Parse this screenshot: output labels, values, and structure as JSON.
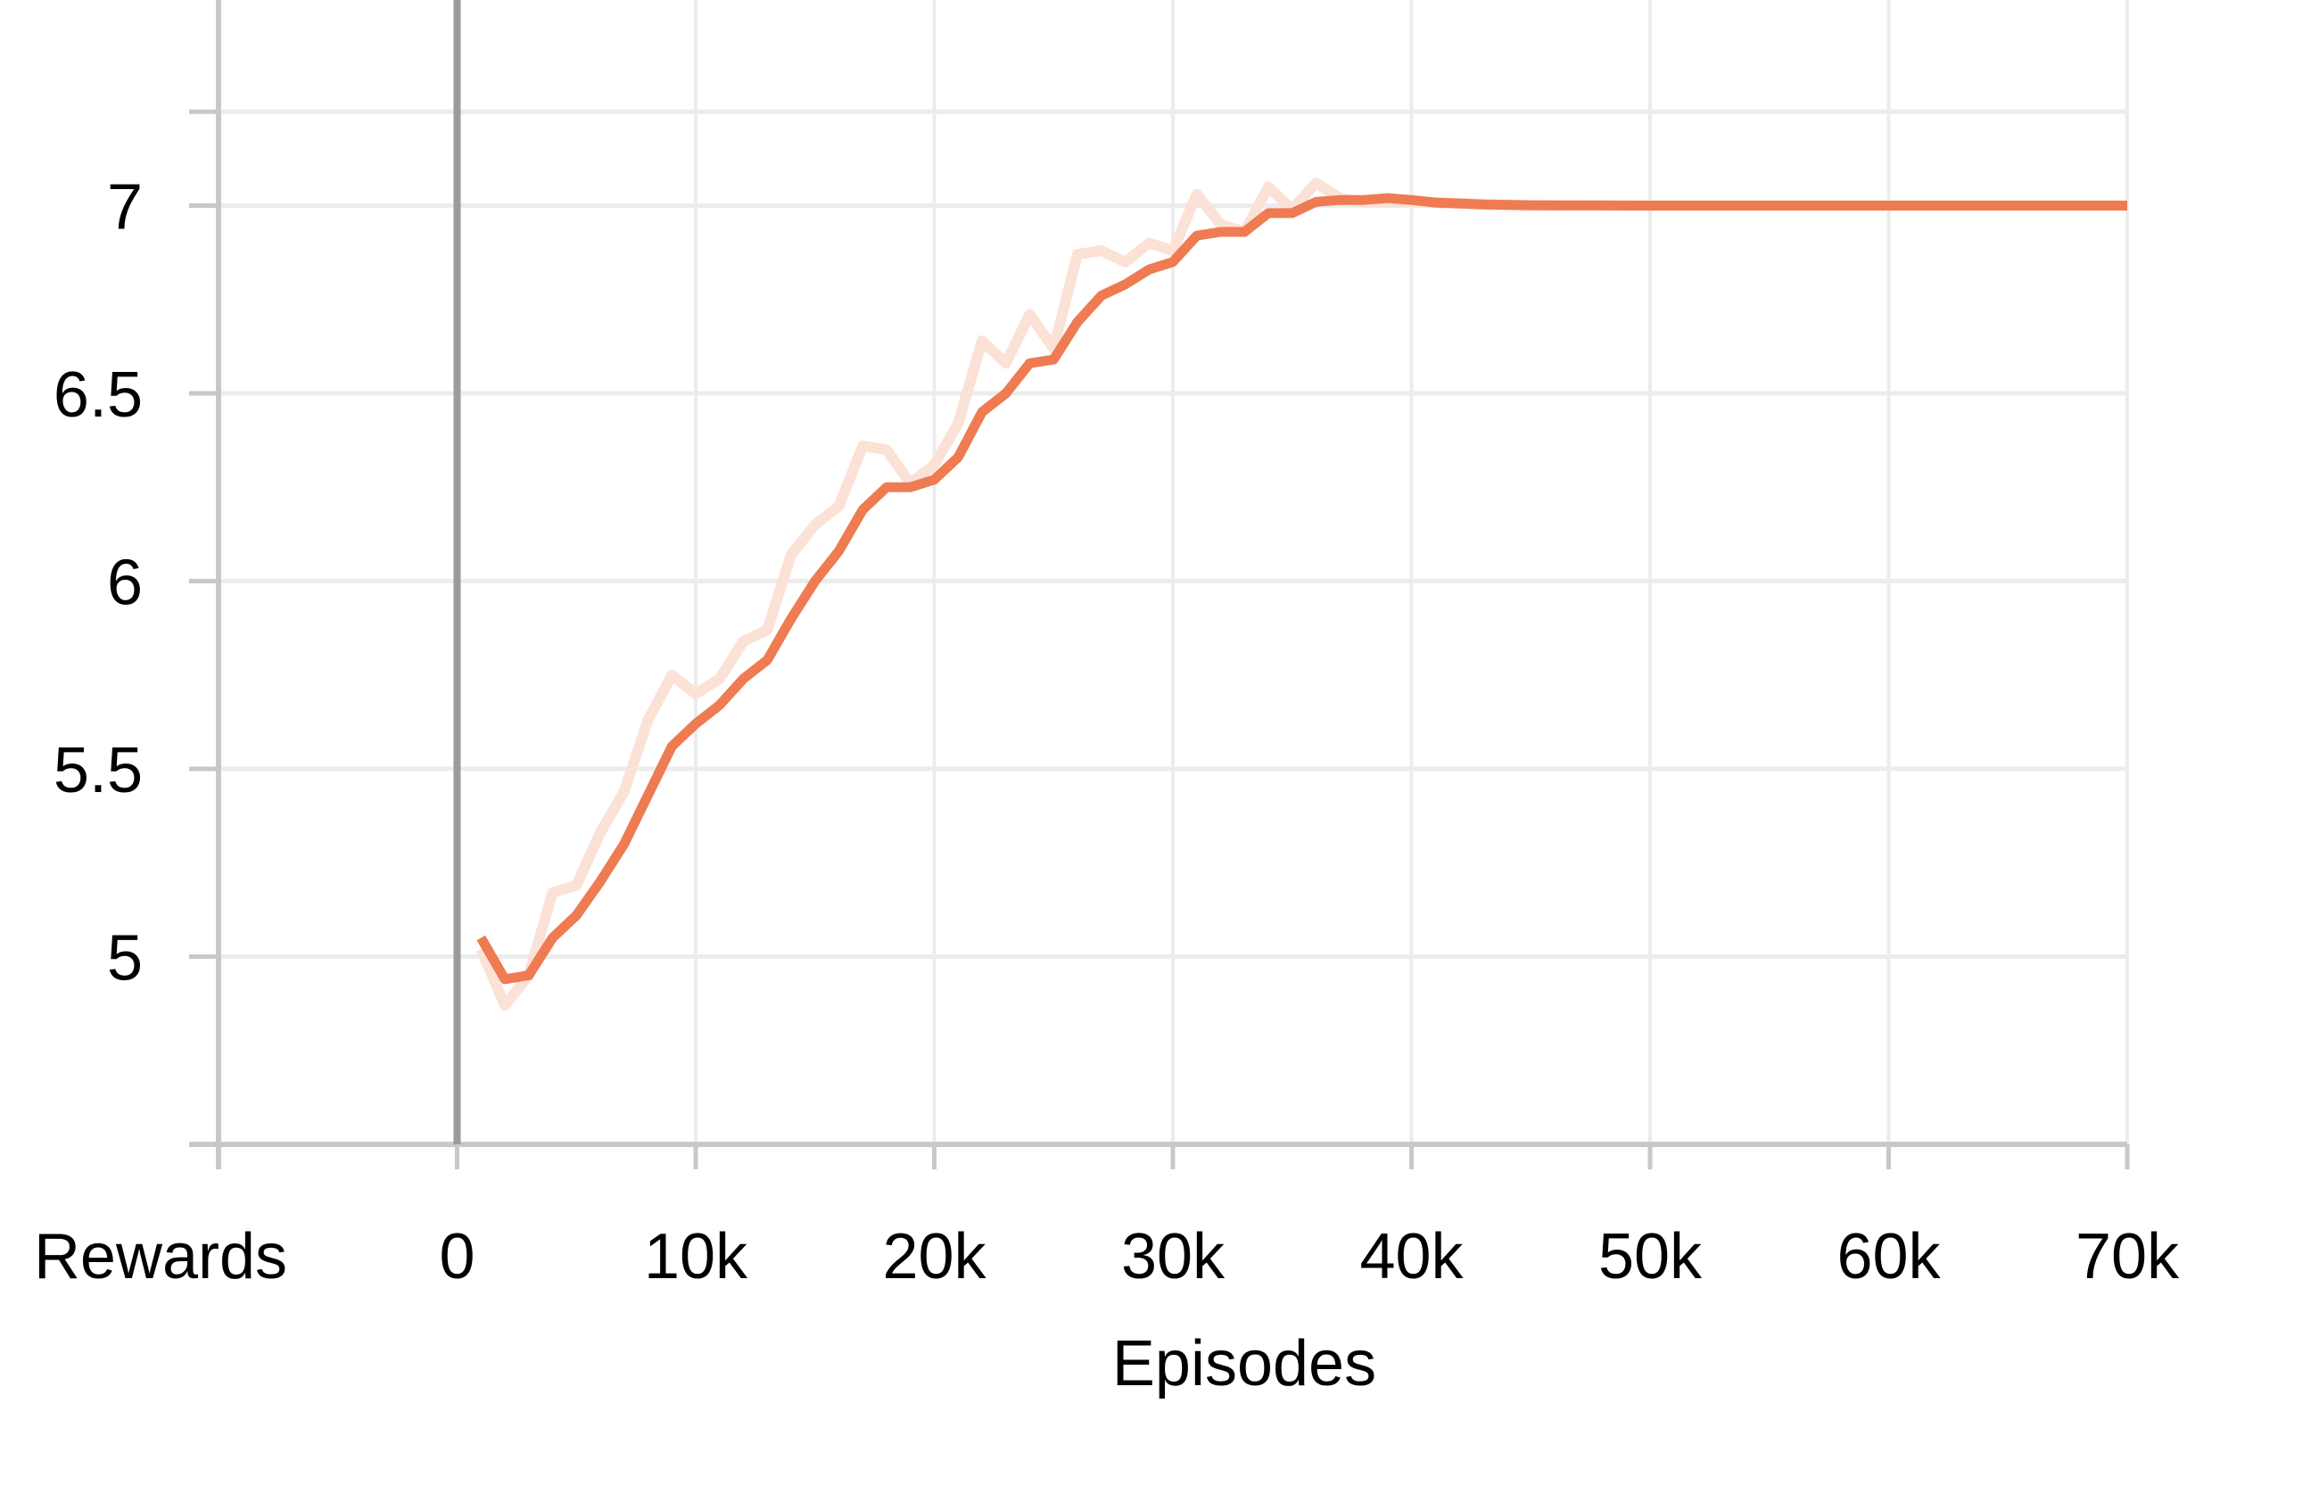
{
  "chart_data": {
    "type": "line",
    "title": "",
    "xlabel": "Episodes",
    "ylabel": "Rewards",
    "xlim": [
      -10000,
      70000
    ],
    "ylim": [
      4.5,
      7.5
    ],
    "x_ticks": [
      0,
      10000,
      20000,
      30000,
      40000,
      50000,
      60000,
      70000
    ],
    "x_tick_labels": [
      "0",
      "10k",
      "20k",
      "30k",
      "40k",
      "50k",
      "60k",
      "70k"
    ],
    "y_ticks": [
      5,
      5.5,
      6,
      6.5,
      7
    ],
    "y_tick_labels": [
      "5",
      "5.5",
      "6",
      "6.5",
      "7"
    ],
    "grid": true,
    "colors": {
      "smoothed": "#ee7b52",
      "raw": "#fbe1d6",
      "grid": "#ececec",
      "axis": "#c8c8c8",
      "zero_line": "#9b9b9b"
    },
    "series": [
      {
        "style": "raw",
        "x": [
          1000,
          2000,
          3000,
          4000,
          5000,
          6000,
          7000,
          8000,
          9000,
          10000,
          11000,
          12000,
          13000,
          14000,
          15000,
          16000,
          17000,
          18000,
          19000,
          20000,
          21000,
          22000,
          23000,
          24000,
          25000,
          26000,
          27000,
          28000,
          29000,
          30000,
          31000,
          32000,
          33000,
          34000,
          35000,
          36000,
          37000,
          38000,
          40000,
          45000,
          50000,
          60000,
          70000
        ],
        "y": [
          5.02,
          4.87,
          4.95,
          5.17,
          5.19,
          5.33,
          5.44,
          5.63,
          5.75,
          5.7,
          5.74,
          5.84,
          5.87,
          6.07,
          6.15,
          6.2,
          6.36,
          6.35,
          6.26,
          6.31,
          6.42,
          6.64,
          6.58,
          6.71,
          6.62,
          6.87,
          6.88,
          6.85,
          6.9,
          6.88,
          7.03,
          6.95,
          6.93,
          7.05,
          6.99,
          7.06,
          7.02,
          7.01,
          7.01,
          7.0,
          7.0,
          7.0,
          7.0
        ]
      },
      {
        "style": "smoothed",
        "x": [
          1000,
          2000,
          3000,
          4000,
          5000,
          6000,
          7000,
          8000,
          9000,
          10000,
          11000,
          12000,
          13000,
          14000,
          15000,
          16000,
          17000,
          18000,
          19000,
          20000,
          21000,
          22000,
          23000,
          24000,
          25000,
          26000,
          27000,
          28000,
          29000,
          30000,
          31000,
          32000,
          33000,
          34000,
          35000,
          36000,
          37000,
          38000,
          39000,
          40000,
          41000,
          43000,
          45000,
          50000,
          60000,
          70000
        ],
        "y": [
          5.05,
          4.94,
          4.95,
          5.05,
          5.11,
          5.2,
          5.3,
          5.43,
          5.56,
          5.62,
          5.67,
          5.74,
          5.79,
          5.9,
          6.0,
          6.08,
          6.19,
          6.25,
          6.25,
          6.27,
          6.33,
          6.45,
          6.5,
          6.58,
          6.59,
          6.69,
          6.76,
          6.79,
          6.83,
          6.85,
          6.92,
          6.93,
          6.93,
          6.98,
          6.98,
          7.01,
          7.015,
          7.015,
          7.02,
          7.015,
          7.008,
          7.003,
          7.001,
          7.0,
          7.0,
          7.0
        ]
      }
    ]
  }
}
